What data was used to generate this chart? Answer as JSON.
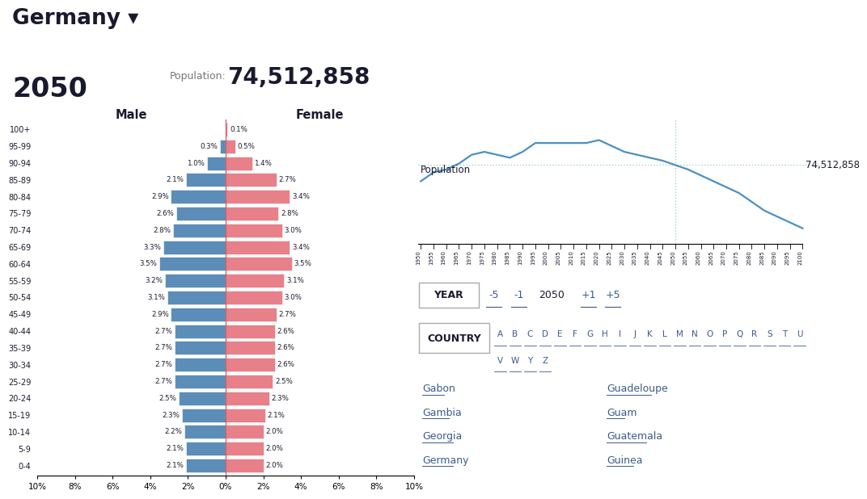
{
  "title_country": "Germany ▾",
  "title_year": "2050",
  "population_label": "Population:",
  "population_value": "74,512,858",
  "age_groups": [
    "100+",
    "95-99",
    "90-94",
    "85-89",
    "80-84",
    "75-79",
    "70-74",
    "65-69",
    "60-64",
    "55-59",
    "50-54",
    "45-49",
    "40-44",
    "35-39",
    "30-34",
    "25-29",
    "20-24",
    "15-19",
    "10-14",
    "5-9",
    "0-4"
  ],
  "male_pct": [
    0.0,
    0.3,
    1.0,
    2.1,
    2.9,
    2.6,
    2.8,
    3.3,
    3.5,
    3.2,
    3.1,
    2.9,
    2.7,
    2.7,
    2.7,
    2.7,
    2.5,
    2.3,
    2.2,
    2.1,
    2.1
  ],
  "female_pct": [
    0.1,
    0.5,
    1.4,
    2.7,
    3.4,
    2.8,
    3.0,
    3.4,
    3.5,
    3.1,
    3.0,
    2.7,
    2.6,
    2.6,
    2.6,
    2.5,
    2.3,
    2.1,
    2.0,
    2.0,
    2.0
  ],
  "male_color": "#5b8db8",
  "female_color": "#e8808a",
  "bar_edge_color": "white",
  "text_color_dark": "#1a1a2e",
  "pyramid_xlim": 10,
  "pop_line_years": [
    1950,
    1955,
    1960,
    1965,
    1970,
    1975,
    1980,
    1985,
    1990,
    1995,
    2000,
    2005,
    2010,
    2015,
    2020,
    2025,
    2030,
    2035,
    2040,
    2045,
    2050,
    2055,
    2060,
    2065,
    2070,
    2075,
    2080,
    2085,
    2090,
    2095,
    2100
  ],
  "pop_line_values": [
    69,
    72,
    73,
    75,
    78,
    79,
    78,
    77,
    79,
    82,
    82,
    82,
    82,
    82,
    83,
    81,
    79,
    78,
    77,
    76,
    74.5,
    73,
    71,
    69,
    67,
    65,
    62,
    59,
    57,
    55,
    53
  ],
  "pop_line_color": "#4a90c4",
  "pop_dotted_color": "#aaccdd",
  "current_year_idx": 20,
  "pop_annotation": "74,512,858",
  "country_list_left": [
    "Gabon",
    "Gambia",
    "Georgia",
    "Germany"
  ],
  "country_list_right": [
    "Guadeloupe",
    "Guam",
    "Guatemala",
    "Guinea"
  ],
  "bg_color": "#ffffff",
  "link_color": "#3a5a8a",
  "divider_color": "#cc3344",
  "gray_text": "#777777"
}
